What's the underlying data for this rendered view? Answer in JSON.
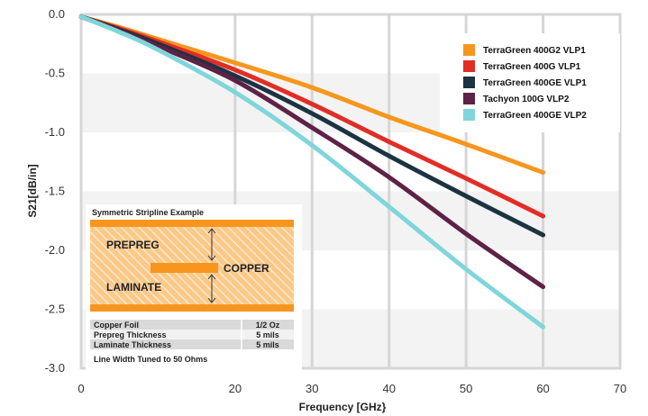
{
  "chart_data": {
    "type": "line",
    "xlabel": "Frequency [GHz}",
    "ylabel": "S21[dB/in]",
    "xlim": [
      0,
      70
    ],
    "ylim": [
      -3.0,
      0.0
    ],
    "x_ticks": [
      "0",
      "20",
      "30",
      "40",
      "50",
      "60",
      "70"
    ],
    "y_ticks": [
      "0.0",
      "-0.5",
      "-1.0",
      "-1.5",
      "-2.0",
      "-2.5",
      "-3.0"
    ],
    "grid": true,
    "legend_position": "top-right",
    "series": [
      {
        "name": "TerraGreen 400G2 VLP1",
        "color": "#f7961e",
        "x": [
          0,
          5,
          10,
          20,
          30,
          40,
          50,
          60
        ],
        "y": [
          -0.02,
          -0.11,
          -0.21,
          -0.41,
          -0.62,
          -0.87,
          -1.1,
          -1.34
        ]
      },
      {
        "name": "TerraGreen 400G VLP1",
        "color": "#e22d26",
        "x": [
          0,
          5,
          10,
          20,
          30,
          40,
          50,
          60
        ],
        "y": [
          -0.02,
          -0.12,
          -0.23,
          -0.47,
          -0.76,
          -1.08,
          -1.39,
          -1.71
        ]
      },
      {
        "name": "TerraGreen 400GE VLP1",
        "color": "#1c3342",
        "x": [
          0,
          5,
          10,
          20,
          30,
          40,
          50,
          60
        ],
        "y": [
          -0.02,
          -0.13,
          -0.25,
          -0.52,
          -0.84,
          -1.2,
          -1.54,
          -1.87
        ]
      },
      {
        "name": "Tachyon 100G VLP2",
        "color": "#5d2245",
        "x": [
          0,
          5,
          10,
          20,
          30,
          40,
          50,
          60
        ],
        "y": [
          -0.02,
          -0.14,
          -0.27,
          -0.56,
          -0.96,
          -1.38,
          -1.86,
          -2.31
        ]
      },
      {
        "name": "TerraGreen 400GE VLP2",
        "color": "#7fd6da",
        "x": [
          0,
          5,
          10,
          20,
          30,
          40,
          50,
          60
        ],
        "y": [
          -0.02,
          -0.15,
          -0.3,
          -0.66,
          -1.11,
          -1.63,
          -2.16,
          -2.65
        ]
      }
    ]
  },
  "inset": {
    "title": "Symmetric Stripline Example",
    "prepreg_label": "PREPREG",
    "copper_label": "COPPER",
    "laminate_label": "LAMINATE",
    "table": [
      {
        "label": "Copper Foil",
        "value": "1/2 Oz"
      },
      {
        "label": "Prepreg Thickness",
        "value": "5 mils"
      },
      {
        "label": "Laminate Thickness",
        "value": "5 mils"
      }
    ],
    "footnote": "Line Width Tuned to 50 Ohms"
  }
}
